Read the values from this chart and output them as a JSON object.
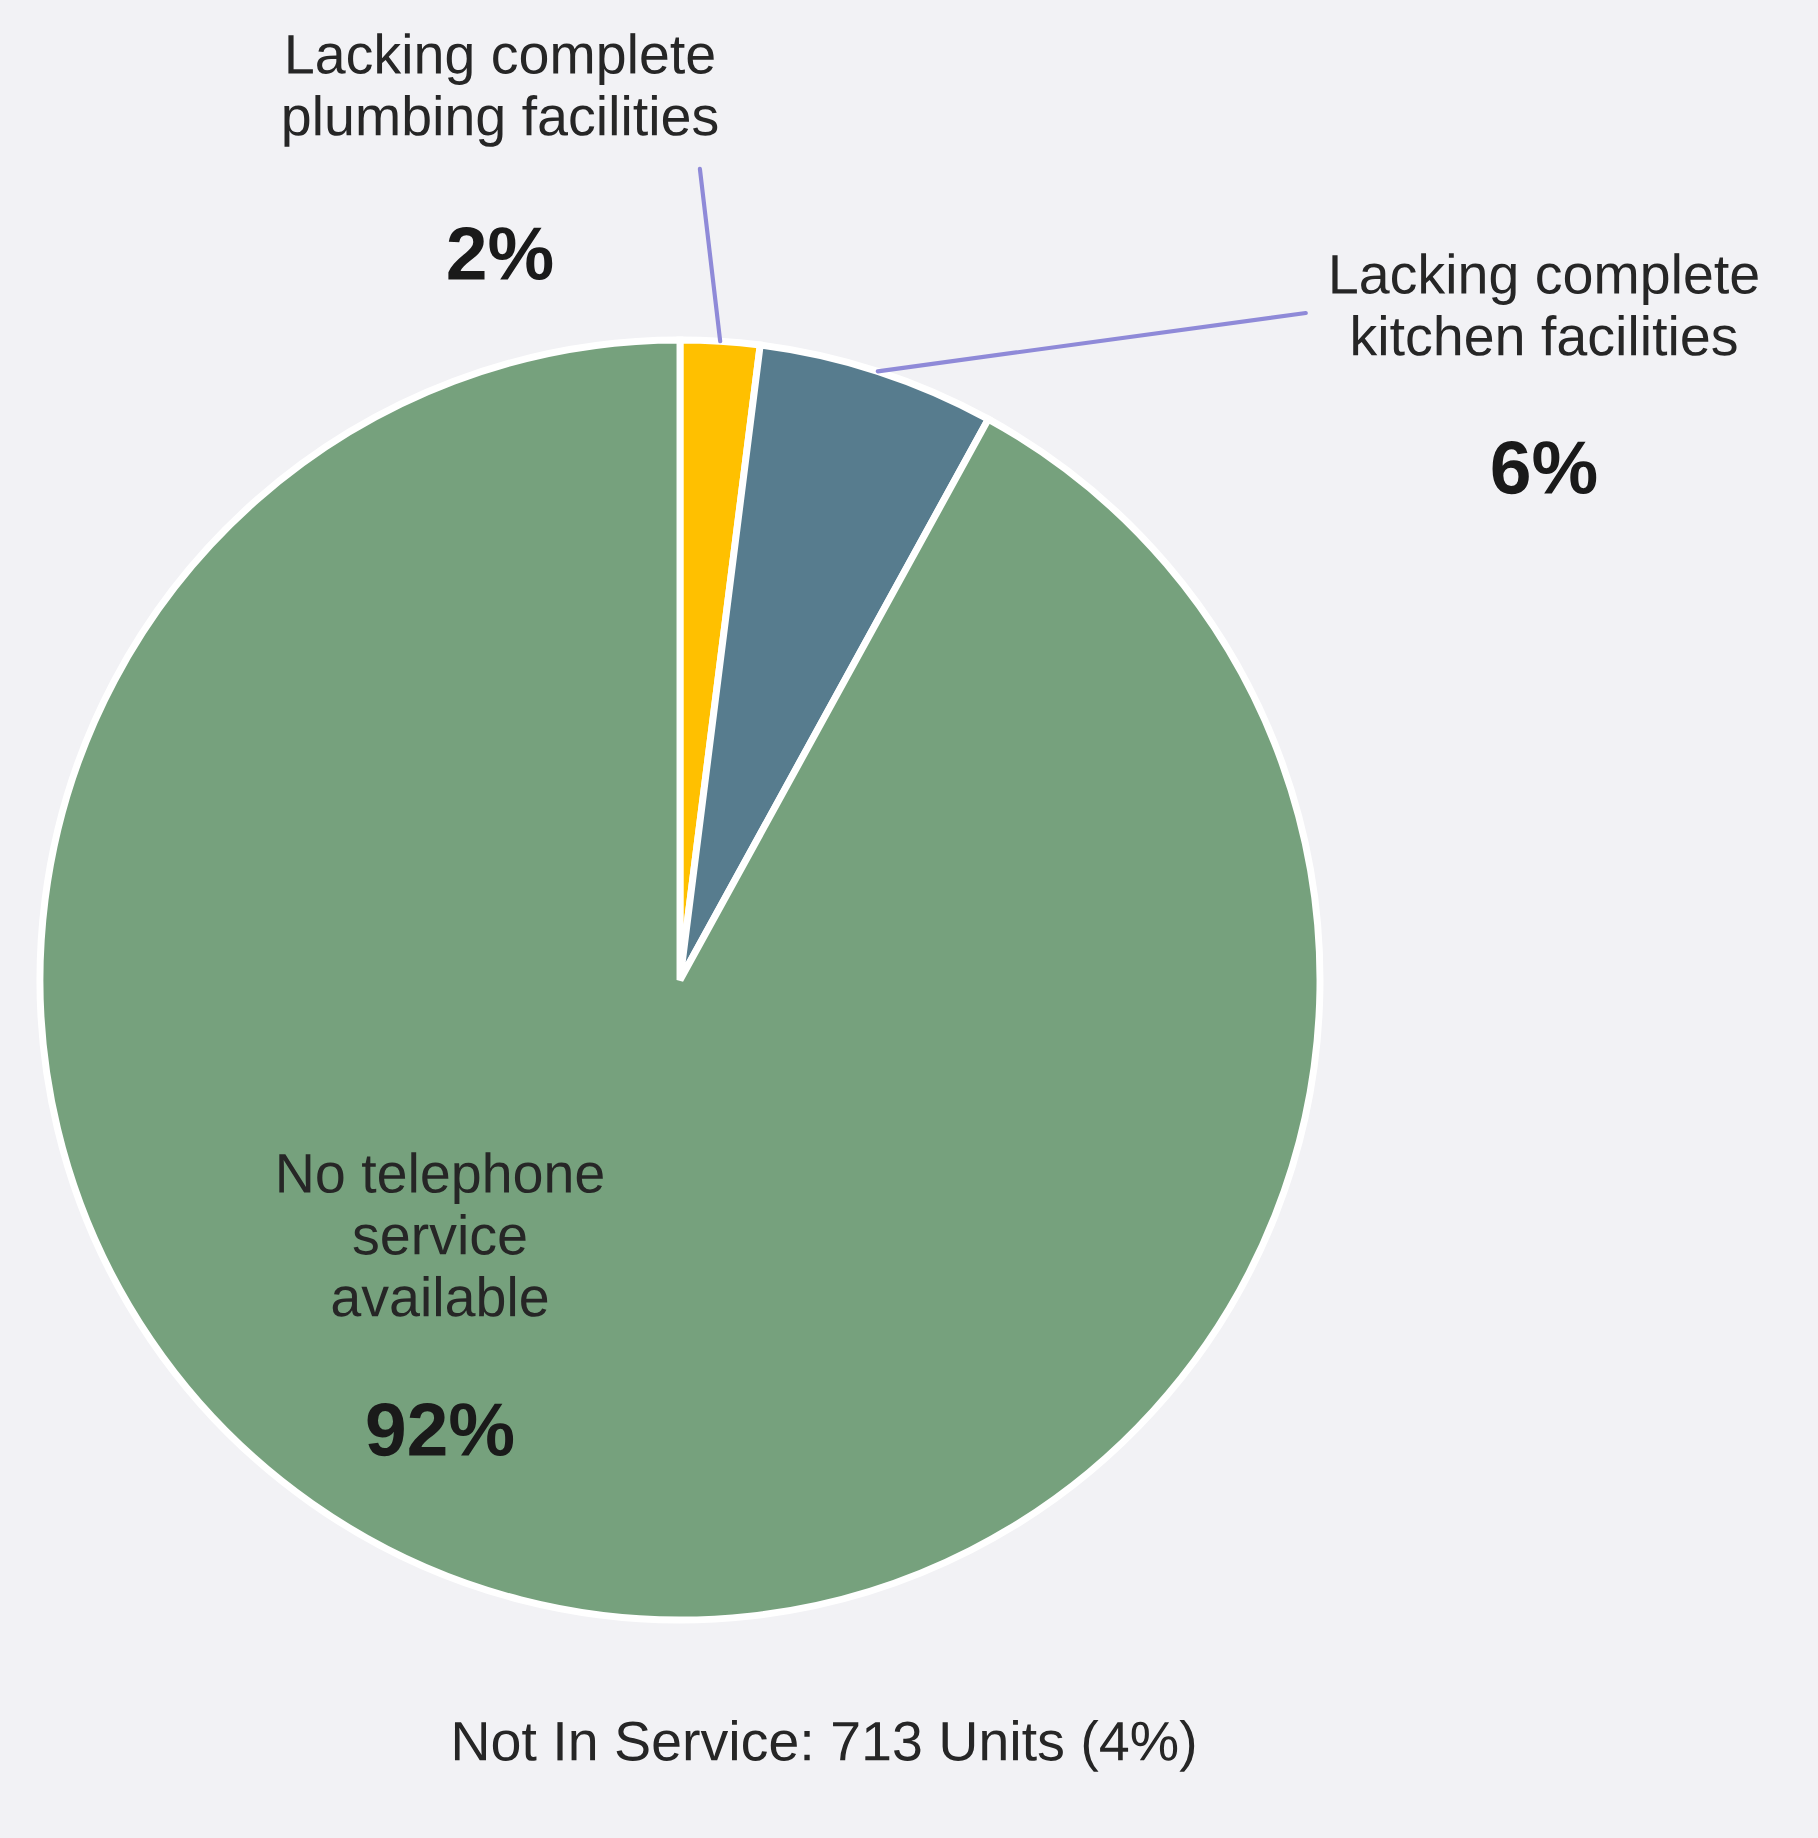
{
  "chart_data": {
    "type": "pie",
    "categories": [
      "Lacking complete plumbing facilities",
      "Lacking complete kitchen facilities",
      "No telephone service available"
    ],
    "values": [
      2,
      6,
      92
    ],
    "colors": [
      "#ffc000",
      "#577c8e",
      "#76a17d"
    ],
    "value_labels": [
      "2%",
      "6%",
      "92%"
    ],
    "annotations": [
      "Not In Service: 713 Units (4%)"
    ]
  }
}
